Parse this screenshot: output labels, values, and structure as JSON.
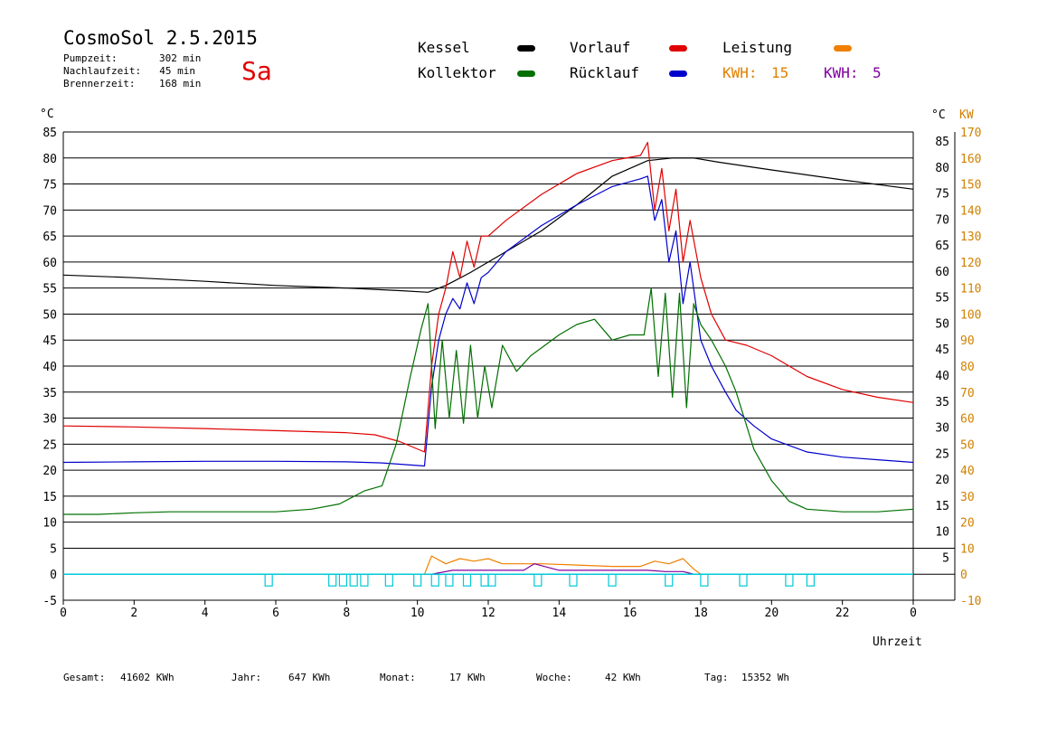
{
  "header": {
    "title": "CosmoSol 2.5.2015",
    "day": "Sa",
    "stats": [
      {
        "label": "Pumpzeit:",
        "value": "302 min"
      },
      {
        "label": "Nachlaufzeit:",
        "value": "45 min"
      },
      {
        "label": "Brennerzeit:",
        "value": "168 min"
      }
    ]
  },
  "legend": {
    "kessel": "Kessel",
    "vorlauf": "Vorlauf",
    "leistung": "Leistung",
    "kollektor": "Kollektor",
    "ruecklauf": "Rücklauf",
    "kwh1_label": "KWH:",
    "kwh1_value": "15",
    "kwh2_label": "KWH:",
    "kwh2_value": "5"
  },
  "axes": {
    "left_unit": "°C",
    "right_unit_c": "°C",
    "right_unit_kw": "KW",
    "xlabel": "Uhrzeit"
  },
  "footer": [
    {
      "label": "Gesamt:",
      "value": "41602 KWh"
    },
    {
      "label": "Jahr:",
      "value": "647 KWh"
    },
    {
      "label": "Monat:",
      "value": "17 KWh"
    },
    {
      "label": "Woche:",
      "value": "42 KWh"
    },
    {
      "label": "Tag:",
      "value": "15352 Wh"
    }
  ],
  "colors": {
    "kessel": "#000000",
    "vorlauf": "#e00000",
    "ruecklauf": "#0000cc",
    "kollektor": "#007000",
    "leistung": "#f08000",
    "kwh2": "#8000a0",
    "pump": "#00c8d8",
    "kw_axis": "#d08000"
  },
  "chart_data": {
    "type": "line",
    "xlim": [
      0,
      24
    ],
    "ylim": [
      -5,
      85
    ],
    "y2lim": [
      -10,
      170
    ],
    "x_ticks": [
      "0",
      "2",
      "4",
      "6",
      "8",
      "10",
      "12",
      "14",
      "16",
      "18",
      "20",
      "22",
      "0"
    ],
    "y_ticks": [
      "-5",
      "0",
      "5",
      "10",
      "15",
      "20",
      "25",
      "30",
      "35",
      "40",
      "45",
      "50",
      "55",
      "60",
      "65",
      "70",
      "75",
      "80",
      "85"
    ],
    "y_right_ticks": [
      "5",
      "10",
      "15",
      "20",
      "25",
      "30",
      "35",
      "40",
      "45",
      "50",
      "55",
      "60",
      "65",
      "70",
      "75",
      "80",
      "85"
    ],
    "y2_ticks": [
      "-10",
      "0",
      "10",
      "20",
      "30",
      "40",
      "50",
      "60",
      "70",
      "80",
      "90",
      "100",
      "110",
      "120",
      "130",
      "140",
      "150",
      "160",
      "170"
    ],
    "series": [
      {
        "name": "Kessel",
        "key": "kessel",
        "x": [
          0,
          2,
          4,
          6,
          8,
          9.5,
          10.3,
          10.8,
          11.5,
          12.5,
          13.5,
          14.5,
          15.5,
          16.5,
          17.2,
          17.8,
          18.5,
          20,
          22,
          24
        ],
        "y": [
          57.5,
          57,
          56.3,
          55.5,
          55,
          54.5,
          54.2,
          55.5,
          58,
          62,
          66,
          71,
          76.5,
          79.5,
          80,
          80,
          79.2,
          77.7,
          75.8,
          74
        ]
      },
      {
        "name": "Vorlauf",
        "key": "vorlauf",
        "x": [
          0,
          2,
          4,
          6,
          8,
          8.8,
          9.5,
          10.2,
          10.4,
          10.6,
          10.8,
          11.0,
          11.2,
          11.4,
          11.6,
          11.8,
          12.0,
          12.5,
          13.5,
          14.5,
          15.5,
          16.3,
          16.5,
          16.7,
          16.9,
          17.1,
          17.3,
          17.5,
          17.7,
          18.0,
          18.3,
          18.7,
          19.3,
          20.0,
          21.0,
          22.0,
          23.0,
          24.0
        ],
        "y": [
          28.5,
          28.3,
          28,
          27.6,
          27.2,
          26.8,
          25.5,
          23.5,
          40,
          50,
          55,
          62,
          57,
          64,
          59,
          65,
          65,
          68,
          73,
          77,
          79.5,
          80.5,
          83,
          70,
          78,
          66,
          74,
          60,
          68,
          57,
          50,
          45,
          44,
          42,
          38,
          35.5,
          34,
          33
        ]
      },
      {
        "name": "Rücklauf",
        "key": "ruecklauf",
        "x": [
          0,
          2,
          4,
          6,
          8,
          9.0,
          9.8,
          10.2,
          10.4,
          10.6,
          10.8,
          11.0,
          11.2,
          11.4,
          11.6,
          11.8,
          12.0,
          12.5,
          13.5,
          14.5,
          15.5,
          16.3,
          16.5,
          16.7,
          16.9,
          17.1,
          17.3,
          17.5,
          17.7,
          18.0,
          18.3,
          18.7,
          19.0,
          19.5,
          20.0,
          21.0,
          22.0,
          23.0,
          24.0
        ],
        "y": [
          21.5,
          21.6,
          21.7,
          21.7,
          21.6,
          21.4,
          21.0,
          20.8,
          36,
          45,
          50,
          53,
          51,
          56,
          52,
          57,
          58,
          62,
          67,
          71,
          74.5,
          76,
          76.5,
          68,
          72,
          60,
          66,
          52,
          60,
          45,
          40,
          35,
          31.5,
          28.5,
          26,
          23.5,
          22.5,
          22,
          21.5
        ]
      },
      {
        "name": "Kollektor",
        "key": "kollektor",
        "x": [
          0,
          1,
          2,
          3,
          4,
          5,
          6,
          7,
          7.8,
          8.5,
          9.0,
          9.4,
          9.8,
          10.1,
          10.3,
          10.5,
          10.7,
          10.9,
          11.1,
          11.3,
          11.5,
          11.7,
          11.9,
          12.1,
          12.4,
          12.8,
          13.2,
          13.6,
          14.0,
          14.5,
          15.0,
          15.5,
          16.0,
          16.4,
          16.6,
          16.8,
          17.0,
          17.2,
          17.4,
          17.6,
          17.8,
          18.0,
          18.3,
          18.7,
          19.0,
          19.5,
          20.0,
          20.5,
          21.0,
          22.0,
          23.0,
          24.0
        ],
        "y": [
          11.5,
          11.5,
          11.8,
          12,
          12,
          12,
          12,
          12.5,
          13.5,
          16,
          17,
          25,
          38,
          47,
          52,
          28,
          45,
          30,
          43,
          29,
          44,
          30,
          40,
          32,
          44,
          39,
          42,
          44,
          46,
          48,
          49,
          45,
          46,
          46,
          55,
          38,
          54,
          34,
          54,
          32,
          52,
          48,
          45,
          40,
          35,
          24,
          18,
          14,
          12.5,
          12,
          12,
          12.5
        ]
      },
      {
        "name": "Leistung",
        "key": "leistung",
        "axis": "kw",
        "x": [
          0,
          10.2,
          10.4,
          10.8,
          11.2,
          11.6,
          12.0,
          12.4,
          13.0,
          13.5,
          14.5,
          15.5,
          16.3,
          16.7,
          17.1,
          17.5,
          17.8,
          18.0,
          24
        ],
        "y": [
          0,
          0,
          7,
          4,
          6,
          5,
          6,
          4,
          4,
          4,
          3.5,
          3,
          3,
          5,
          4,
          6,
          2,
          0,
          0
        ]
      },
      {
        "name": "KWH 5",
        "key": "kwh2",
        "axis": "kw",
        "x": [
          0,
          10.4,
          11.0,
          12.0,
          13.0,
          13.3,
          14.0,
          15.0,
          16.0,
          16.5,
          17.0,
          17.5,
          17.8,
          24
        ],
        "y": [
          0,
          0,
          1.5,
          1.5,
          1.5,
          4,
          1.5,
          1.5,
          1.5,
          1.5,
          1,
          1,
          0,
          0
        ]
      }
    ],
    "pump_markers_x": [
      5.8,
      7.6,
      7.9,
      8.2,
      8.5,
      9.2,
      10.0,
      10.5,
      10.9,
      11.4,
      11.9,
      12.1,
      13.4,
      14.4,
      15.5,
      17.1,
      18.1,
      19.2,
      20.5,
      21.1
    ],
    "grid": true
  }
}
